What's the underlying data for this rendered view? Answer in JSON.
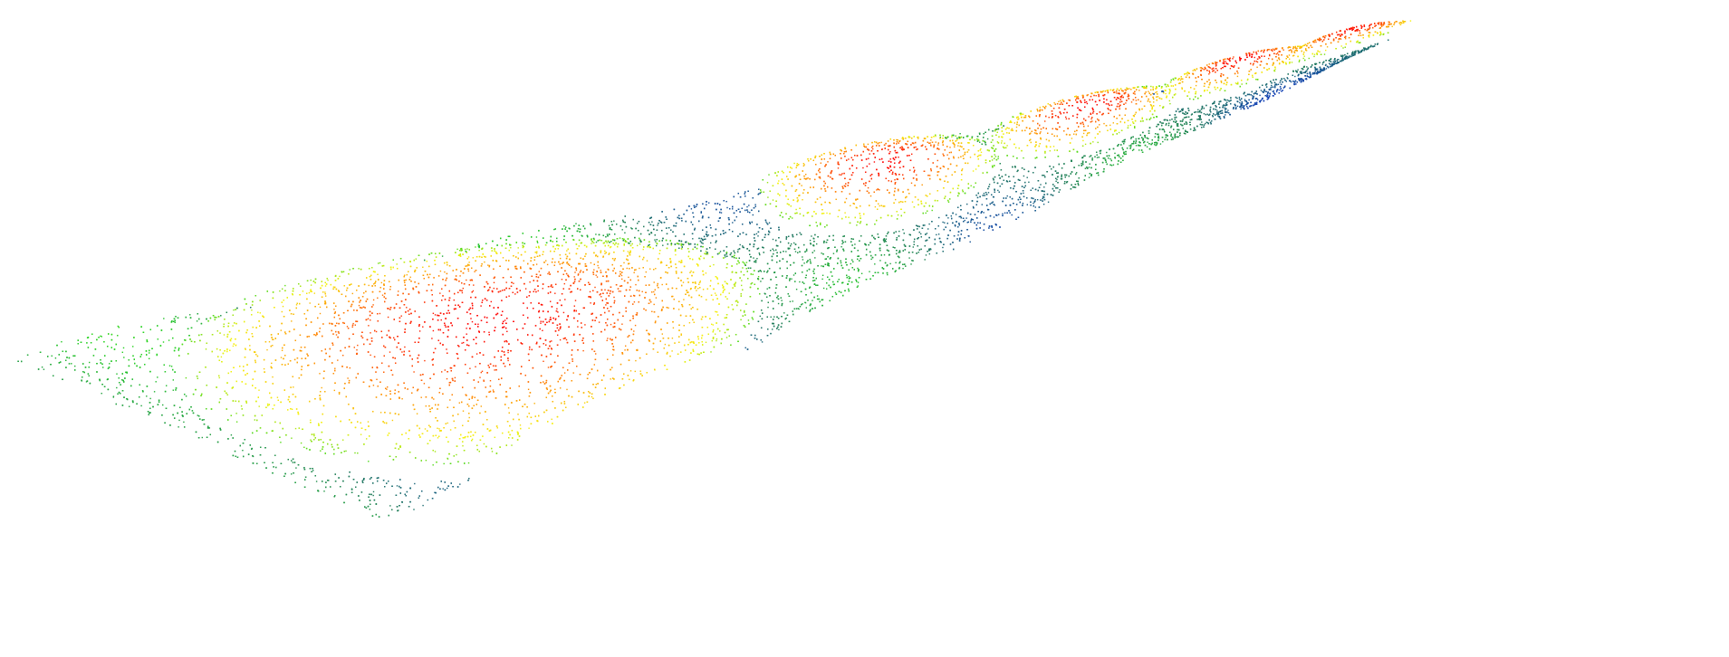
{
  "scene": {
    "kind": "point-cloud",
    "surface": "terrain-strip",
    "background": "#ffffff",
    "colormap": {
      "low": "#0a2fc8",
      "low_mid": "#1f7a5a",
      "mid": "#22d21c",
      "high_mid": "#f4f20a",
      "high_mid2": "#ff8c00",
      "high": "#ff0000"
    },
    "features": [
      {
        "type": "mound",
        "label": "",
        "relative_height": 1.0
      },
      {
        "type": "mound",
        "label": "",
        "relative_height": 1.0
      },
      {
        "type": "mound",
        "label": "",
        "relative_height": 1.0
      },
      {
        "type": "mound",
        "label": "",
        "relative_height": 1.0
      },
      {
        "type": "mound",
        "label": "",
        "relative_height": 1.0
      }
    ]
  }
}
